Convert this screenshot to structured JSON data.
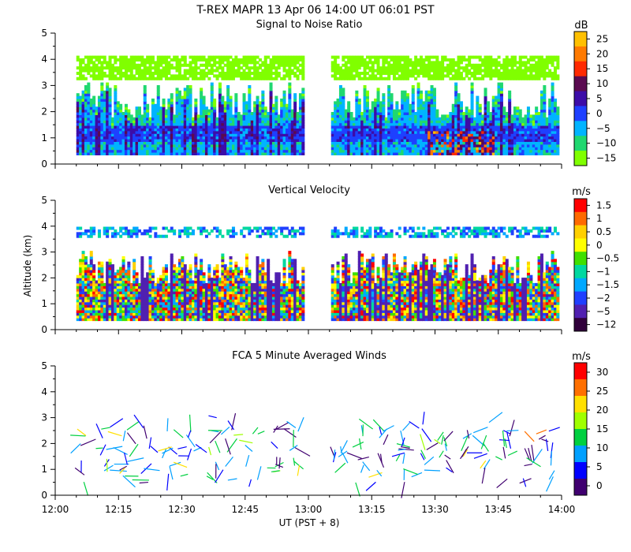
{
  "header": {
    "title": "T-REX  MAPR 13 Apr 06  14:00 UT  06:01  PST"
  },
  "chart_data": [
    {
      "type": "heatmap",
      "title": "Signal to Noise Ratio",
      "units": "dB",
      "ylabel": "Altitude (km)",
      "ylim": [
        0,
        5
      ],
      "yticks": [
        "0",
        "1",
        "2",
        "3",
        "4",
        "5"
      ],
      "xlim": [
        0,
        120
      ],
      "gap_minutes": [
        59,
        65
      ],
      "colorbar_labels": [
        "25",
        "20",
        "15",
        "10",
        "5",
        "0",
        "−5",
        "−10",
        "−15"
      ],
      "colors": [
        "#ffc000",
        "#ff7a00",
        "#ff2a00",
        "#5a0a50",
        "#3c0ca8",
        "#1e40ff",
        "#00b4ff",
        "#20d870",
        "#80ff00"
      ]
    },
    {
      "type": "heatmap",
      "title": "Vertical Velocity",
      "units": "m/s",
      "ylabel": "Altitude (km)",
      "ylim": [
        0,
        5
      ],
      "yticks": [
        "0",
        "1",
        "2",
        "3",
        "4",
        "5"
      ],
      "xlim": [
        0,
        120
      ],
      "gap_minutes": [
        59,
        65
      ],
      "colorbar_labels": [
        "1.5",
        "1",
        "0.5",
        "0",
        "−0.5",
        "−1",
        "−1.5",
        "−2",
        "−5",
        "−12"
      ],
      "colors": [
        "#ff0000",
        "#ff6a00",
        "#ffd000",
        "#ffff00",
        "#40e000",
        "#00d8a0",
        "#00a8ff",
        "#2040ff",
        "#5020b0",
        "#30003a"
      ]
    },
    {
      "type": "scatter",
      "title": "FCA 5 Minute Averaged Winds",
      "units": "m/s",
      "ylabel": "",
      "ylim": [
        0,
        5
      ],
      "yticks": [
        "0",
        "1",
        "2",
        "3",
        "4",
        "5"
      ],
      "xlim": [
        0,
        120
      ],
      "gap_minutes": [
        59,
        65
      ],
      "colorbar_labels": [
        "30",
        "25",
        "20",
        "15",
        "10",
        "5",
        "0"
      ],
      "colors": [
        "#ff0000",
        "#ff7000",
        "#ffe000",
        "#a0ff00",
        "#00d040",
        "#00a0ff",
        "#0000ff",
        "#400070"
      ]
    }
  ],
  "x_axis": {
    "ticks": [
      "12:00",
      "12:15",
      "12:30",
      "12:45",
      "13:00",
      "13:15",
      "13:30",
      "13:45",
      "14:00"
    ],
    "label": "UT  (PST + 8)"
  }
}
